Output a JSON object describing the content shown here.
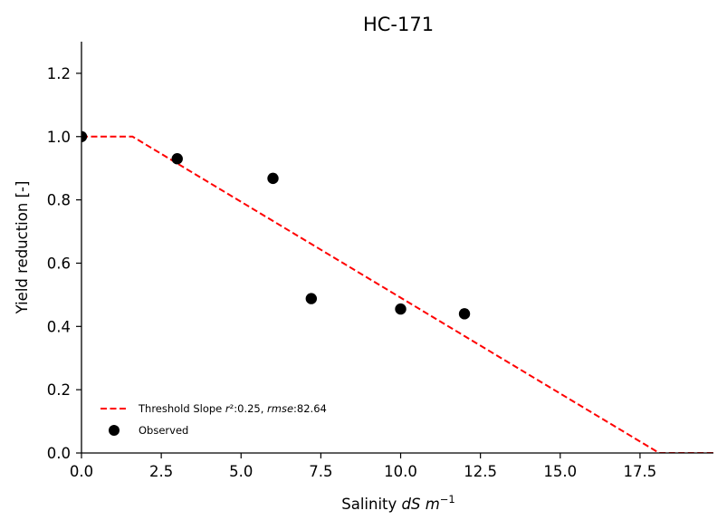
{
  "chart_data": {
    "type": "line",
    "title": "HC-171",
    "xlabel": {
      "prefix": "Salinity ",
      "unit_italic": "dS m",
      "sup": "−1"
    },
    "ylabel": "Yield reduction [-]",
    "xlim": [
      0,
      19.8
    ],
    "ylim": [
      0,
      1.3
    ],
    "xticks": [
      0.0,
      2.5,
      5.0,
      7.5,
      10.0,
      12.5,
      15.0,
      17.5
    ],
    "xtick_labels": [
      "0.0",
      "2.5",
      "5.0",
      "7.5",
      "10.0",
      "12.5",
      "15.0",
      "17.5"
    ],
    "yticks": [
      0.0,
      0.2,
      0.4,
      0.6,
      0.8,
      1.0,
      1.2
    ],
    "ytick_labels": [
      "0.0",
      "0.2",
      "0.4",
      "0.6",
      "0.8",
      "1.0",
      "1.2"
    ],
    "grid": false,
    "legend_position": "bottom-left",
    "series": [
      {
        "name": "Threshold Slope r²:0.25, rmse:82.64",
        "name_parts": {
          "lead": "Threshold Slope ",
          "r": "r",
          "r_rest": "²:0.25, ",
          "rmse": "rmse",
          "rmse_rest": ":82.64"
        },
        "kind": "dashed-line",
        "color": "#ff0000",
        "x": [
          0.0,
          1.6,
          18.1,
          19.8
        ],
        "y": [
          1.0,
          1.0,
          0.0,
          0.0
        ]
      },
      {
        "name": "Observed",
        "kind": "scatter",
        "color": "#000000",
        "x": [
          0.0,
          3.0,
          6.0,
          7.2,
          10.0,
          12.0
        ],
        "y": [
          1.0,
          0.93,
          0.868,
          0.488,
          0.455,
          0.44
        ]
      }
    ]
  }
}
